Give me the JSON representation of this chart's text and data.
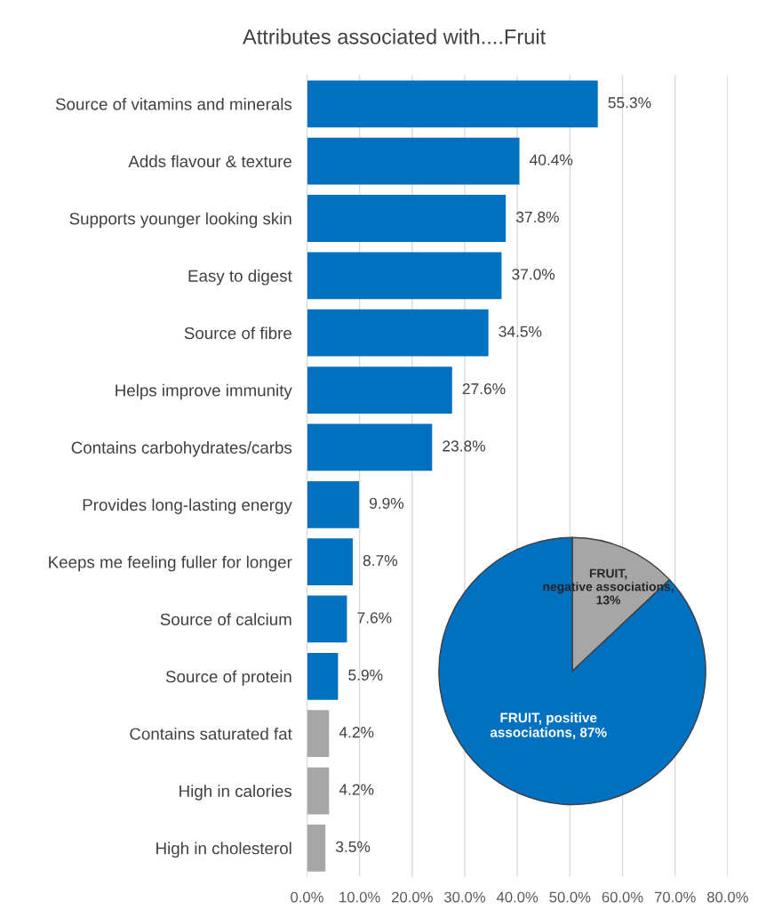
{
  "chart_data": [
    {
      "type": "bar",
      "orientation": "horizontal",
      "title": "Attributes associated with....Fruit",
      "categories": [
        "Source of vitamins and minerals",
        "Adds flavour & texture",
        "Supports younger looking skin",
        "Easy to digest",
        "Source of fibre",
        "Helps improve immunity",
        "Contains carbohydrates/carbs",
        "Provides long-lasting energy",
        "Keeps me feeling fuller for longer",
        "Source of calcium",
        "Source of protein",
        "Contains saturated fat",
        "High in calories",
        "High in cholesterol"
      ],
      "values": [
        55.3,
        40.4,
        37.8,
        37.0,
        34.5,
        27.6,
        23.8,
        9.9,
        8.7,
        7.6,
        5.9,
        4.2,
        4.2,
        3.5
      ],
      "value_labels": [
        "55.3%",
        "40.4%",
        "37.8%",
        "37.0%",
        "34.5%",
        "27.6%",
        "23.8%",
        "9.9%",
        "8.7%",
        "7.6%",
        "5.9%",
        "4.2%",
        "4.2%",
        "3.5%"
      ],
      "colors": [
        "#0070c0",
        "#0070c0",
        "#0070c0",
        "#0070c0",
        "#0070c0",
        "#0070c0",
        "#0070c0",
        "#0070c0",
        "#0070c0",
        "#0070c0",
        "#0070c0",
        "#a6a6a6",
        "#a6a6a6",
        "#a6a6a6"
      ],
      "xlim": [
        0,
        80
      ],
      "xticks": [
        {
          "value": 0,
          "label": "0.0%"
        },
        {
          "value": 10,
          "label": "10.0%"
        },
        {
          "value": 20,
          "label": "20.0%"
        },
        {
          "value": 30,
          "label": "30.0%"
        },
        {
          "value": 40,
          "label": "40.0%"
        },
        {
          "value": 50,
          "label": "50.0%"
        },
        {
          "value": 60,
          "label": "60.0%"
        },
        {
          "value": 70,
          "label": "70.0%"
        },
        {
          "value": 80,
          "label": "80.0%"
        }
      ],
      "grid": "x"
    },
    {
      "type": "pie",
      "categories": [
        "FRUIT, negative associations, 13%",
        "FRUIT, positive associations, 87%"
      ],
      "values": [
        13,
        87
      ],
      "colors": [
        "#a6a6a6",
        "#0070c0"
      ]
    }
  ]
}
